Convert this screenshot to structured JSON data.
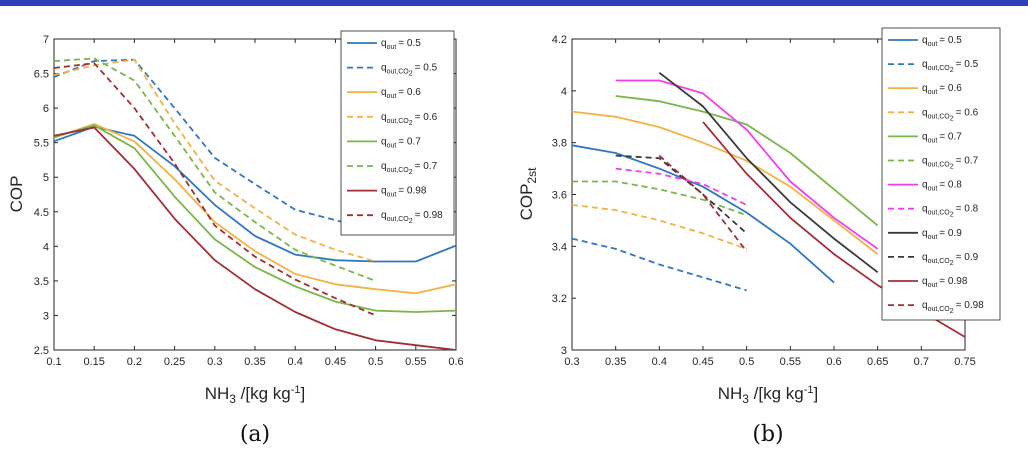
{
  "chart_data": [
    {
      "type": "line",
      "caption": "(a)",
      "ylabel": "COP",
      "xlabel": {
        "main": "NH",
        "sub": "3",
        "rest": " /[kg kg",
        "sup": "-1",
        "end": "]"
      },
      "xlim": [
        0.1,
        0.6
      ],
      "ylim": [
        2.5,
        7
      ],
      "xticks": [
        0.1,
        0.15,
        0.2,
        0.25,
        0.3,
        0.35,
        0.4,
        0.45,
        0.5,
        0.55,
        0.6
      ],
      "xtick_labels": [
        "0.1",
        "0.15",
        "0.2",
        "0.25",
        "0.3",
        "0.35",
        "0.4",
        "0.45",
        "0.5",
        "0.55",
        "0.6"
      ],
      "yticks": [
        2.5,
        3,
        3.5,
        4,
        4.5,
        5,
        5.5,
        6,
        6.5,
        7
      ],
      "ytick_labels": [
        "2.5",
        "3",
        "3.5",
        "4",
        "4.5",
        "5",
        "5.5",
        "6",
        "6.5",
        "7"
      ],
      "legend_position": "top-right",
      "series": [
        {
          "base": "q",
          "sub": "out",
          "co2": false,
          "value": "= 0.5",
          "color": "#2E78C2",
          "dashed": false,
          "x": [
            0.1,
            0.15,
            0.2,
            0.25,
            0.3,
            0.35,
            0.4,
            0.45,
            0.5,
            0.55,
            0.6
          ],
          "y": [
            5.52,
            5.73,
            5.6,
            5.16,
            4.6,
            4.15,
            3.88,
            3.8,
            3.78,
            3.78,
            4.01
          ]
        },
        {
          "base": "q",
          "sub": "out,CO",
          "co2": true,
          "value": "= 0.5",
          "color": "#2E78C2",
          "dashed": true,
          "x": [
            0.1,
            0.15,
            0.2,
            0.25,
            0.3,
            0.35,
            0.4,
            0.45,
            0.5
          ],
          "y": [
            6.45,
            6.68,
            6.7,
            6.0,
            5.28,
            4.9,
            4.53,
            4.38,
            4.22
          ]
        },
        {
          "base": "q",
          "sub": "out",
          "co2": false,
          "value": "= 0.6",
          "color": "#F2B244",
          "dashed": false,
          "x": [
            0.1,
            0.15,
            0.2,
            0.25,
            0.3,
            0.35,
            0.4,
            0.45,
            0.5,
            0.55,
            0.6
          ],
          "y": [
            5.57,
            5.77,
            5.52,
            4.97,
            4.35,
            3.93,
            3.6,
            3.45,
            3.38,
            3.32,
            3.45
          ]
        },
        {
          "base": "q",
          "sub": "out,CO",
          "co2": true,
          "value": "= 0.6",
          "color": "#F2B244",
          "dashed": true,
          "x": [
            0.1,
            0.15,
            0.2,
            0.25,
            0.3,
            0.35,
            0.4,
            0.45,
            0.5
          ],
          "y": [
            6.48,
            6.62,
            6.7,
            5.78,
            4.95,
            4.55,
            4.17,
            3.95,
            3.78
          ]
        },
        {
          "base": "q",
          "sub": "out",
          "co2": false,
          "value": "= 0.7",
          "color": "#7AB648",
          "dashed": false,
          "x": [
            0.1,
            0.15,
            0.2,
            0.25,
            0.3,
            0.35,
            0.4,
            0.45,
            0.5,
            0.55,
            0.6
          ],
          "y": [
            5.58,
            5.75,
            5.42,
            4.72,
            4.1,
            3.7,
            3.42,
            3.2,
            3.07,
            3.05,
            3.07
          ]
        },
        {
          "base": "q",
          "sub": "out,CO",
          "co2": true,
          "value": "= 0.7",
          "color": "#7AB648",
          "dashed": true,
          "x": [
            0.1,
            0.15,
            0.2,
            0.25,
            0.3,
            0.35,
            0.4,
            0.45,
            0.5
          ],
          "y": [
            6.68,
            6.72,
            6.4,
            5.6,
            4.78,
            4.35,
            3.95,
            3.72,
            3.5
          ]
        },
        {
          "base": "q",
          "sub": "out",
          "co2": false,
          "value": "= 0.98",
          "color": "#A32D35",
          "dashed": false,
          "x": [
            0.1,
            0.15,
            0.2,
            0.25,
            0.3,
            0.35,
            0.4,
            0.45,
            0.5,
            0.55,
            0.6
          ],
          "y": [
            5.6,
            5.72,
            5.12,
            4.4,
            3.8,
            3.38,
            3.05,
            2.8,
            2.64,
            2.57,
            2.5
          ]
        },
        {
          "base": "q",
          "sub": "out,CO",
          "co2": true,
          "value": "= 0.98",
          "color": "#A32D35",
          "dashed": true,
          "x": [
            0.1,
            0.15,
            0.2,
            0.25,
            0.3,
            0.35,
            0.4,
            0.45,
            0.5
          ],
          "y": [
            6.58,
            6.65,
            6.0,
            5.2,
            4.3,
            3.85,
            3.52,
            3.25,
            3.0
          ]
        }
      ]
    },
    {
      "type": "line",
      "caption": "(b)",
      "ylabel": {
        "main": "COP",
        "sub": "2st"
      },
      "xlabel": {
        "main": "NH",
        "sub": "3",
        "rest": " /[kg kg",
        "sup": "-1",
        "end": "]"
      },
      "xlim": [
        0.3,
        0.75
      ],
      "ylim": [
        3,
        4.2
      ],
      "xticks": [
        0.3,
        0.35,
        0.4,
        0.45,
        0.5,
        0.55,
        0.6,
        0.65,
        0.7,
        0.75
      ],
      "xtick_labels": [
        "0.3",
        "0.35",
        "0.4",
        "0.45",
        "0.5",
        "0.55",
        "0.6",
        "0.65",
        "0.7",
        "0.75"
      ],
      "yticks": [
        3,
        3.2,
        3.4,
        3.6,
        3.8,
        4,
        4.2
      ],
      "ytick_labels": [
        "3",
        "3.2",
        "3.4",
        "3.6",
        "3.8",
        "4",
        "4.2"
      ],
      "legend_position": "top-right",
      "series": [
        {
          "base": "q",
          "sub": "out",
          "co2": false,
          "value": "= 0.5",
          "color": "#2E78C2",
          "dashed": false,
          "x": [
            0.3,
            0.35,
            0.4,
            0.45,
            0.5,
            0.55,
            0.6
          ],
          "y": [
            3.79,
            3.76,
            3.7,
            3.63,
            3.53,
            3.41,
            3.26
          ]
        },
        {
          "base": "q",
          "sub": "out,CO",
          "co2": true,
          "value": "= 0.5",
          "color": "#2E78C2",
          "dashed": true,
          "x": [
            0.3,
            0.35,
            0.4,
            0.45,
            0.5
          ],
          "y": [
            3.43,
            3.39,
            3.33,
            3.28,
            3.23
          ]
        },
        {
          "base": "q",
          "sub": "out",
          "co2": false,
          "value": "= 0.6",
          "color": "#F2B244",
          "dashed": false,
          "x": [
            0.3,
            0.35,
            0.4,
            0.45,
            0.5,
            0.55,
            0.6,
            0.65
          ],
          "y": [
            3.92,
            3.9,
            3.86,
            3.8,
            3.73,
            3.63,
            3.5,
            3.37
          ]
        },
        {
          "base": "q",
          "sub": "out,CO",
          "co2": true,
          "value": "= 0.6",
          "color": "#F2B244",
          "dashed": true,
          "x": [
            0.3,
            0.35,
            0.4,
            0.45,
            0.5
          ],
          "y": [
            3.56,
            3.54,
            3.5,
            3.45,
            3.39
          ]
        },
        {
          "base": "q",
          "sub": "out",
          "co2": false,
          "value": "= 0.7",
          "color": "#7AB648",
          "dashed": false,
          "x": [
            0.35,
            0.4,
            0.45,
            0.5,
            0.55,
            0.6,
            0.65
          ],
          "y": [
            3.98,
            3.96,
            3.92,
            3.87,
            3.76,
            3.62,
            3.48
          ]
        },
        {
          "base": "q",
          "sub": "out,CO",
          "co2": true,
          "value": "= 0.7",
          "color": "#7AB648",
          "dashed": true,
          "x": [
            0.3,
            0.35,
            0.4,
            0.45,
            0.5
          ],
          "y": [
            3.65,
            3.65,
            3.62,
            3.58,
            3.52
          ]
        },
        {
          "base": "q",
          "sub": "out",
          "co2": false,
          "value": "= 0.8",
          "color": "#F23EF0",
          "dashed": false,
          "x": [
            0.35,
            0.4,
            0.45,
            0.5,
            0.55,
            0.6,
            0.65
          ],
          "y": [
            4.04,
            4.04,
            3.99,
            3.85,
            3.65,
            3.51,
            3.39
          ]
        },
        {
          "base": "q",
          "sub": "out,CO",
          "co2": true,
          "value": "= 0.8",
          "color": "#F23EF0",
          "dashed": true,
          "x": [
            0.35,
            0.4,
            0.45,
            0.5
          ],
          "y": [
            3.7,
            3.68,
            3.64,
            3.56
          ]
        },
        {
          "base": "q",
          "sub": "out",
          "co2": false,
          "value": "= 0.9",
          "color": "#3A3A3A",
          "dashed": false,
          "x": [
            0.4,
            0.45,
            0.5,
            0.55,
            0.6,
            0.65
          ],
          "y": [
            4.07,
            3.94,
            3.74,
            3.57,
            3.43,
            3.3
          ]
        },
        {
          "base": "q",
          "sub": "out,CO",
          "co2": true,
          "value": "= 0.9",
          "color": "#3A3A3A",
          "dashed": true,
          "x": [
            0.35,
            0.4,
            0.45,
            0.5
          ],
          "y": [
            3.75,
            3.74,
            3.6,
            3.45
          ]
        },
        {
          "base": "q",
          "sub": "out",
          "co2": false,
          "value": "= 0.98",
          "color": "#A32D35",
          "dashed": false,
          "x": [
            0.45,
            0.5,
            0.55,
            0.6,
            0.65,
            0.7,
            0.75
          ],
          "y": [
            3.88,
            3.68,
            3.51,
            3.37,
            3.25,
            3.15,
            3.05
          ]
        },
        {
          "base": "q",
          "sub": "out,CO",
          "co2": true,
          "value": "= 0.98",
          "color": "#A32D35",
          "dashed": true,
          "x": [
            0.4,
            0.45,
            0.5
          ],
          "y": [
            3.75,
            3.6,
            3.38
          ]
        }
      ]
    }
  ],
  "legend_co2_sub": "2",
  "header_color": "#2F3FB7"
}
